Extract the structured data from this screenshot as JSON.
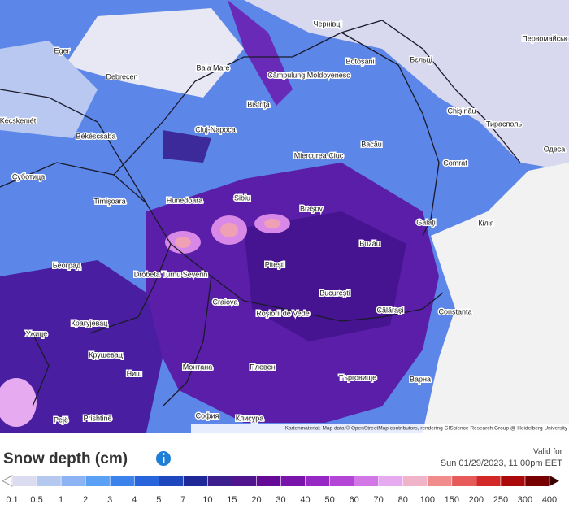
{
  "map": {
    "cities": [
      "Eger",
      "Debrecen",
      "Baia Mare",
      "Чернівці",
      "Botoşani",
      "Бєльці",
      "Câmpulung Moldovenesc",
      "Bistriţa",
      "Kecskemét",
      "Békéscsaba",
      "Cluj-Napoca",
      "Miercurea Ciuc",
      "Bacău",
      "Chişinău",
      "Тирасполь",
      "Одеса",
      "Comrat",
      "Суботица",
      "Timişoara",
      "Hunedoara",
      "Sibiu",
      "Braşov",
      "Galaţi",
      "Кілія",
      "Београд",
      "Drobeta Turnu Severin",
      "Piteşti",
      "Buzău",
      "Bucureşti",
      "Craiova",
      "Roşiorii de Vede",
      "Călăraşi",
      "Constanţa",
      "Крагујевац",
      "Ужице",
      "Крушевац",
      "Ниш",
      "Монтана",
      "Плевен",
      "Търговище",
      "Варна",
      "София",
      "Клисура",
      "Prishtinë",
      "Pejë",
      "Первомайськ"
    ],
    "attribution": "Kartenmaterial: Map data © OpenStreetMap contributors, rendering GIScience Research Group @ Heidelberg University"
  },
  "legend": {
    "title": "Snow depth (cm)",
    "valid_label": "Valid for",
    "valid_time": "Sun 01/29/2023, 11:00pm EET",
    "levels": [
      0.1,
      0.5,
      1,
      2,
      3,
      4,
      5,
      7,
      10,
      15,
      20,
      30,
      40,
      50,
      60,
      70,
      80,
      100,
      150,
      200,
      250,
      300,
      400
    ],
    "colors": [
      "#dcdcf0",
      "#b4c8f0",
      "#8cb4f5",
      "#5aa0f5",
      "#3c82eb",
      "#2864dc",
      "#1e46be",
      "#1e2896",
      "#3c1e8c",
      "#50148c",
      "#640a96",
      "#7814aa",
      "#9628c3",
      "#b446d7",
      "#d278e6",
      "#e6aaf0",
      "#f0b4c8",
      "#f08c8c",
      "#e65a5a",
      "#d22828",
      "#aa0a0a",
      "#780000"
    ]
  }
}
